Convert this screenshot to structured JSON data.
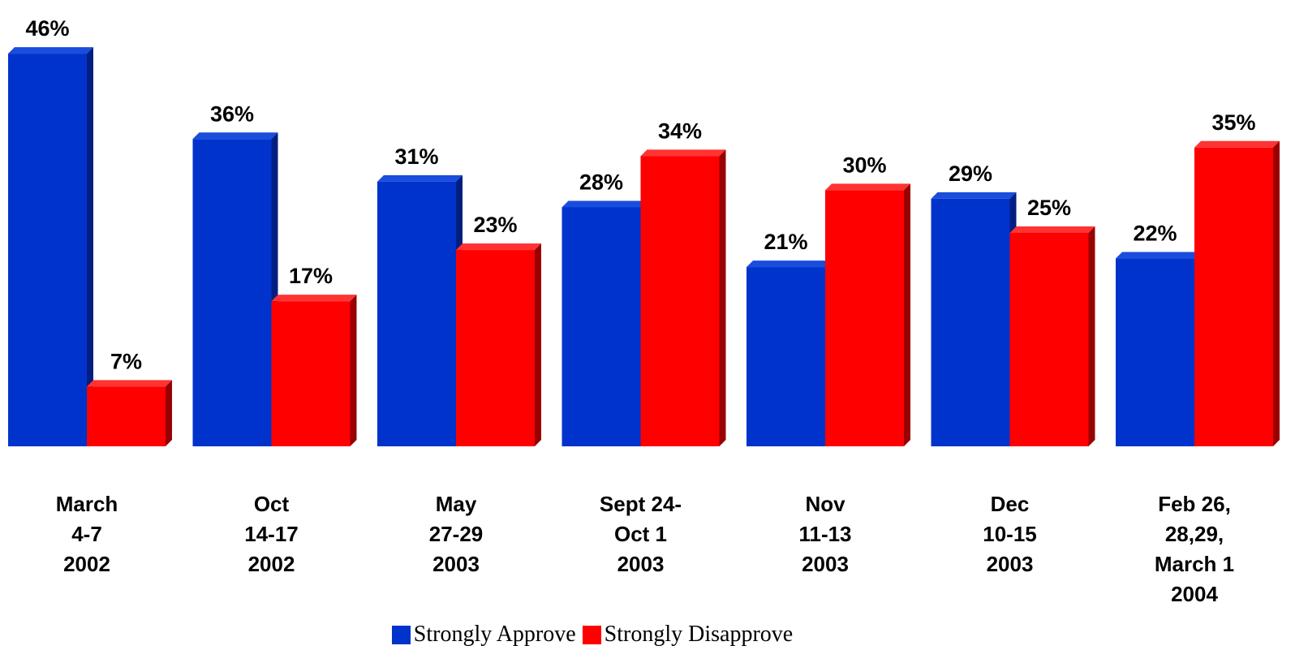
{
  "chart_data": {
    "type": "bar",
    "categories": [
      [
        "March",
        "4-7",
        "2002"
      ],
      [
        "Oct",
        "14-17",
        "2002"
      ],
      [
        "May",
        "27-29",
        "2003"
      ],
      [
        "Sept 24-",
        "Oct 1",
        "2003"
      ],
      [
        "Nov",
        "11-13",
        "2003"
      ],
      [
        "Dec",
        "10-15",
        "2003"
      ],
      [
        "Feb 26,",
        "28,29,",
        "March 1",
        "2004"
      ]
    ],
    "series": [
      {
        "name": "Strongly Approve",
        "values": [
          46,
          36,
          31,
          28,
          21,
          29,
          22
        ],
        "labels": [
          "46%",
          "36%",
          "31%",
          "28%",
          "21%",
          "29%",
          "22%"
        ],
        "color": "#0033CC"
      },
      {
        "name": "Strongly Disapprove",
        "values": [
          7,
          17,
          23,
          34,
          30,
          25,
          35
        ],
        "labels": [
          "7%",
          "17%",
          "23%",
          "34%",
          "30%",
          "25%",
          "35%"
        ],
        "color": "#FF0000"
      }
    ],
    "ylim": [
      0,
      46
    ],
    "grid": false,
    "legend_position": "bottom",
    "style": "3d-bars"
  }
}
